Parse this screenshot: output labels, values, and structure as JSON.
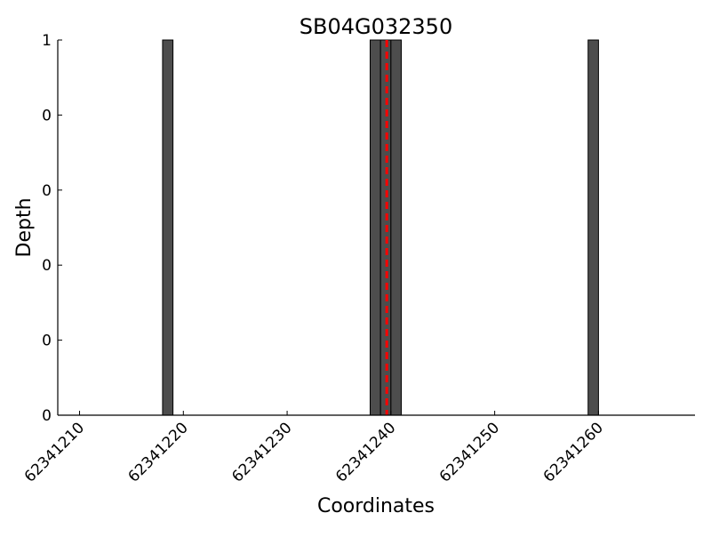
{
  "chart_data": {
    "type": "bar",
    "title": "SB04G032350",
    "xlabel": "Coordinates",
    "ylabel": "Depth",
    "xlim": [
      62341207.9,
      62341269.3
    ],
    "ylim": [
      0,
      1
    ],
    "x_ticks": [
      62341210,
      62341220,
      62341230,
      62341240,
      62341250,
      62341260
    ],
    "x_tick_labels": [
      "62341210",
      "62341220",
      "62341230",
      "62341240",
      "62341250",
      "62341260"
    ],
    "y_ticks": [
      0,
      0.2,
      0.4,
      0.6,
      0.8,
      1
    ],
    "y_tick_labels": [
      "0",
      "0",
      "0",
      "0",
      "0",
      "1"
    ],
    "bars": [
      {
        "x": 62341218,
        "value": 1
      },
      {
        "x": 62341238,
        "value": 1
      },
      {
        "x": 62341239,
        "value": 1
      },
      {
        "x": 62341240,
        "value": 1
      },
      {
        "x": 62341259,
        "value": 1
      }
    ],
    "bar_width": 1,
    "marker_line": {
      "x": 62341239.6,
      "style": "dashed",
      "color": "#ff0000"
    },
    "bar_color": "#4d4d4d",
    "grid": false
  }
}
